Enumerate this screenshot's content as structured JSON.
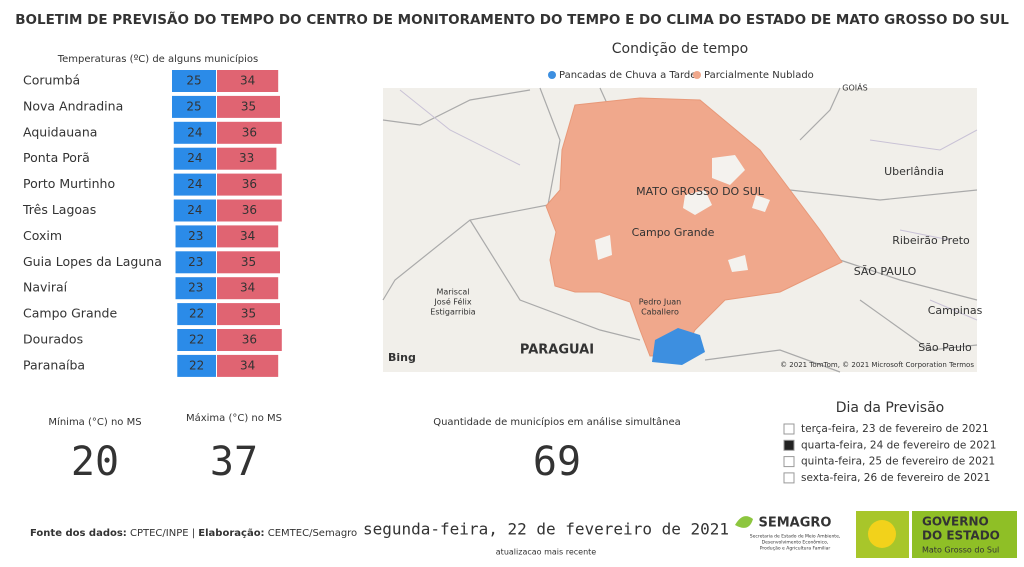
{
  "header": {
    "title": "BOLETIM DE PREVISÃO DO TEMPO DO CENTRO DE MONITORAMENTO DO TEMPO E DO CLIMA DO ESTADO DE MATO GROSSO DO SUL"
  },
  "chart_data": {
    "type": "bar",
    "title": "Temperaturas (ºC) de alguns municípios",
    "categories": [
      "Corumbá",
      "Nova Andradina",
      "Aquidauana",
      "Ponta Porã",
      "Porto Murtinho",
      "Três Lagoas",
      "Coxim",
      "Guia Lopes da Laguna",
      "Naviraí",
      "Campo Grande",
      "Dourados",
      "Paranaíba"
    ],
    "series": [
      {
        "color": "#2b8be8",
        "values": [
          25,
          25,
          24,
          24,
          24,
          24,
          23,
          23,
          23,
          22,
          22,
          22
        ]
      },
      {
        "color": "#e06472",
        "values": [
          34,
          35,
          36,
          33,
          36,
          36,
          34,
          35,
          34,
          35,
          36,
          34
        ]
      }
    ]
  },
  "map": {
    "title": "Condição de tempo",
    "legend": [
      {
        "name": "Pancadas de Chuva a Tarde",
        "color": "#3d8fe0"
      },
      {
        "name": "Parcialmente Nublado",
        "color": "#f0a88c"
      }
    ],
    "labels": [
      "MATO GROSSO DO SUL",
      "Campo Grande",
      "Uberlândia",
      "Ribeirão Preto",
      "SÃO PAULO",
      "Campinas",
      "São Paulo",
      "Mariscal",
      "José Félix",
      "Estigarribia",
      "PARAGUAI",
      "Pedro Juan",
      "Caballero",
      "GOIÁS"
    ],
    "brand": "Bing",
    "credits": "© 2021 TomTom, © 2021 Microsoft Corporation  Termos"
  },
  "kpis": [
    {
      "label": "Mínima (°C) no MS",
      "value": "20"
    },
    {
      "label": "Máxima (°C) no MS",
      "value": "37"
    },
    {
      "label": "Quantidade de municípios em análise simultânea",
      "value": "69"
    }
  ],
  "slicer": {
    "title": "Dia da Previsão",
    "options": [
      "terça-feira, 23 de fevereiro de 2021",
      "quarta-feira, 24 de fevereiro de 2021",
      "quinta-feira, 25 de fevereiro de 2021",
      "sexta-feira, 26 de fevereiro de 2021"
    ],
    "selected": 1
  },
  "footer": {
    "source_label": "Fonte dos dados:",
    "source": " CPTEC/INPE | ",
    "author_label": "Elaboração:",
    "author": " CEMTEC/Semagro",
    "date": "segunda-feira, 22 de fevereiro de 2021",
    "updated": "atualizacao mais recente"
  },
  "logos": {
    "semagro": "SEMAGRO",
    "semagro_sub": [
      "Secretaria de Estado de Meio Ambiente,",
      "Desenvolvimento Econômico,",
      "Produção e Agricultura Familiar"
    ],
    "gov": [
      "GOVERNO",
      "DO ESTADO"
    ],
    "gov_sub": "Mato Grosso do Sul"
  }
}
